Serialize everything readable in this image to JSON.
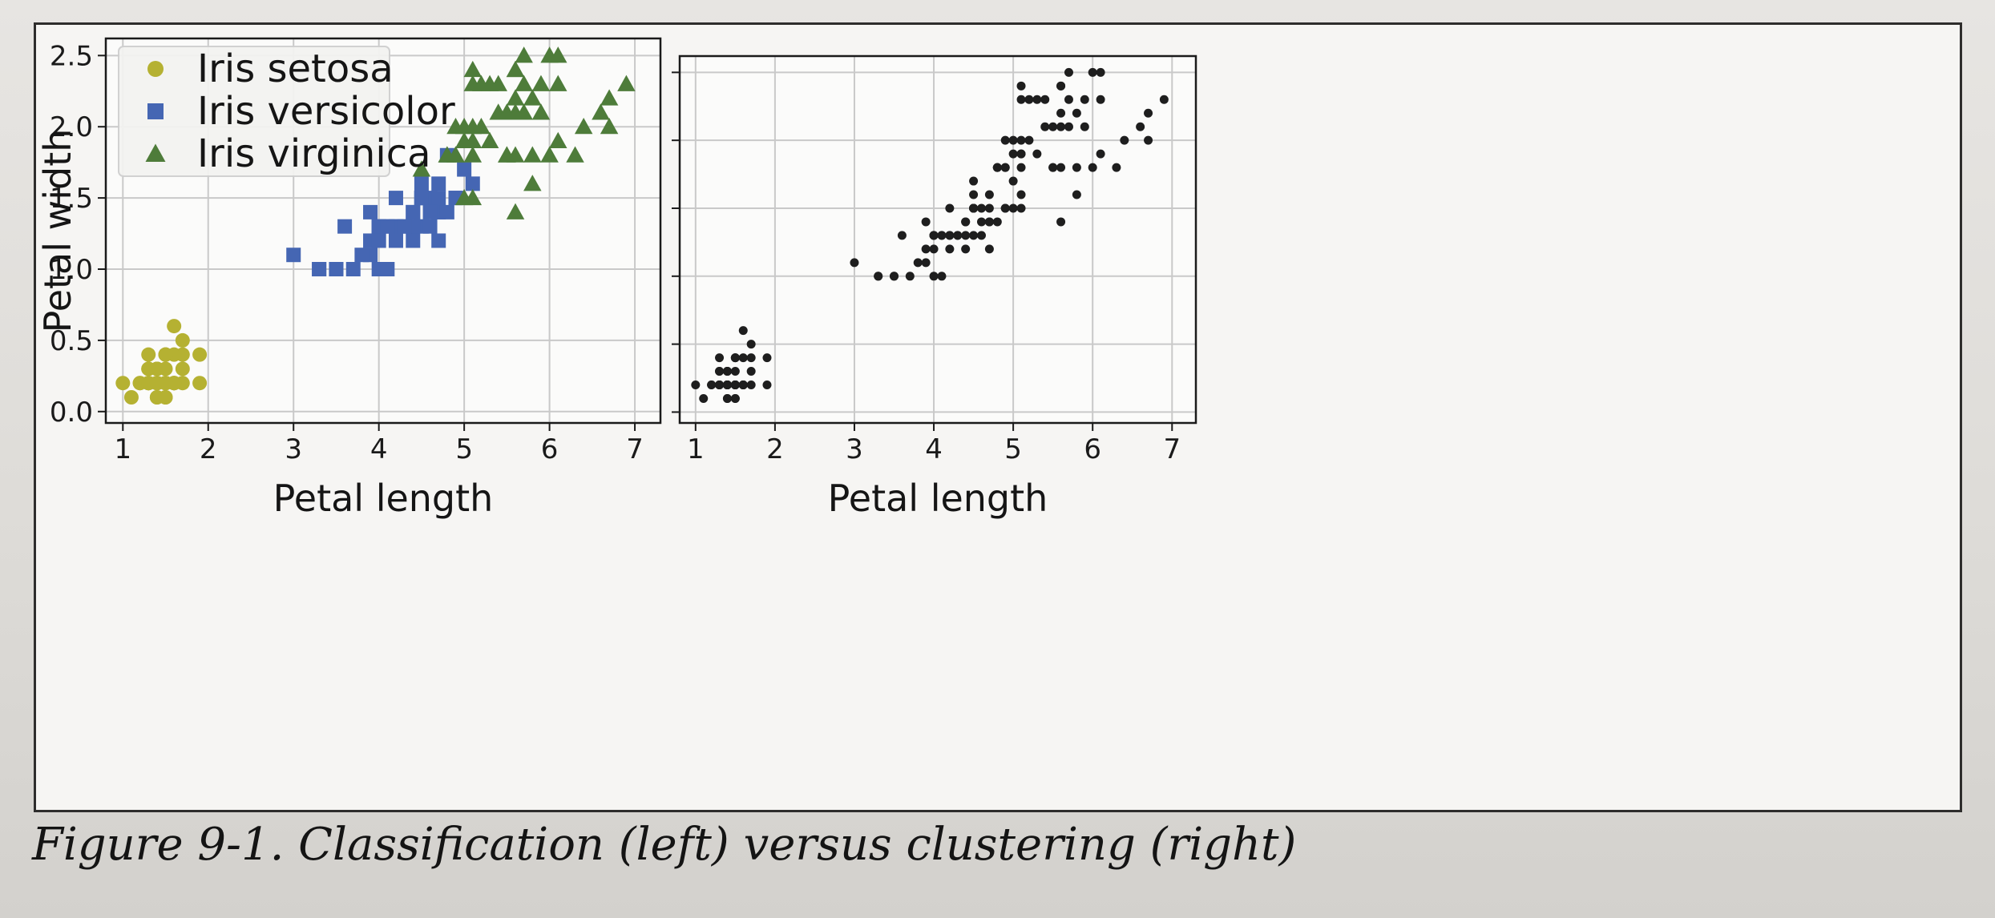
{
  "caption": "Figure 9-1. Classification (left) versus clustering (right)",
  "colors": {
    "setosa": "#b5b132",
    "versicolor": "#4566b3",
    "virginica": "#4e7c3a",
    "unlabeled": "#1e1e1e",
    "grid": "#c9c9c9",
    "frame": "#1a1a1a"
  },
  "chart_data": [
    {
      "type": "scatter",
      "position": "left",
      "title": "",
      "xlabel": "Petal length",
      "ylabel": "Petal width",
      "xlim": [
        0.8,
        7.3
      ],
      "ylim": [
        -0.08,
        2.62
      ],
      "xticks": [
        "1",
        "2",
        "3",
        "4",
        "5",
        "6",
        "7"
      ],
      "yticks": [
        "0.0",
        "0.5",
        "1.0",
        "1.5",
        "2.0",
        "2.5"
      ],
      "grid": true,
      "legend": {
        "placement": "top-left",
        "entries": [
          "Iris setosa",
          "Iris versicolor",
          "Iris virginica"
        ]
      },
      "series": [
        {
          "name": "Iris setosa",
          "marker": "circle",
          "color_key": "setosa",
          "points": [
            [
              1.4,
              0.2
            ],
            [
              1.4,
              0.2
            ],
            [
              1.3,
              0.2
            ],
            [
              1.5,
              0.2
            ],
            [
              1.4,
              0.2
            ],
            [
              1.7,
              0.4
            ],
            [
              1.4,
              0.3
            ],
            [
              1.5,
              0.2
            ],
            [
              1.4,
              0.2
            ],
            [
              1.5,
              0.1
            ],
            [
              1.5,
              0.2
            ],
            [
              1.6,
              0.2
            ],
            [
              1.4,
              0.1
            ],
            [
              1.1,
              0.1
            ],
            [
              1.2,
              0.2
            ],
            [
              1.5,
              0.4
            ],
            [
              1.3,
              0.4
            ],
            [
              1.4,
              0.3
            ],
            [
              1.7,
              0.3
            ],
            [
              1.5,
              0.3
            ],
            [
              1.7,
              0.2
            ],
            [
              1.5,
              0.4
            ],
            [
              1.0,
              0.2
            ],
            [
              1.7,
              0.5
            ],
            [
              1.9,
              0.2
            ],
            [
              1.6,
              0.2
            ],
            [
              1.6,
              0.4
            ],
            [
              1.5,
              0.2
            ],
            [
              1.4,
              0.2
            ],
            [
              1.6,
              0.2
            ],
            [
              1.6,
              0.2
            ],
            [
              1.5,
              0.4
            ],
            [
              1.5,
              0.1
            ],
            [
              1.4,
              0.2
            ],
            [
              1.5,
              0.2
            ],
            [
              1.2,
              0.2
            ],
            [
              1.3,
              0.2
            ],
            [
              1.4,
              0.1
            ],
            [
              1.3,
              0.2
            ],
            [
              1.5,
              0.2
            ],
            [
              1.3,
              0.3
            ],
            [
              1.3,
              0.3
            ],
            [
              1.3,
              0.2
            ],
            [
              1.6,
              0.6
            ],
            [
              1.9,
              0.4
            ],
            [
              1.4,
              0.3
            ],
            [
              1.6,
              0.2
            ],
            [
              1.4,
              0.2
            ],
            [
              1.5,
              0.2
            ],
            [
              1.4,
              0.2
            ]
          ]
        },
        {
          "name": "Iris versicolor",
          "marker": "square",
          "color_key": "versicolor",
          "points": [
            [
              4.7,
              1.4
            ],
            [
              4.5,
              1.5
            ],
            [
              4.9,
              1.5
            ],
            [
              4.0,
              1.3
            ],
            [
              4.6,
              1.5
            ],
            [
              4.5,
              1.3
            ],
            [
              4.7,
              1.6
            ],
            [
              3.3,
              1.0
            ],
            [
              4.6,
              1.3
            ],
            [
              3.9,
              1.4
            ],
            [
              3.5,
              1.0
            ],
            [
              4.2,
              1.5
            ],
            [
              4.0,
              1.0
            ],
            [
              4.7,
              1.4
            ],
            [
              3.6,
              1.3
            ],
            [
              4.4,
              1.4
            ],
            [
              4.5,
              1.5
            ],
            [
              4.1,
              1.0
            ],
            [
              4.5,
              1.5
            ],
            [
              3.9,
              1.1
            ],
            [
              4.8,
              1.8
            ],
            [
              4.0,
              1.3
            ],
            [
              4.9,
              1.5
            ],
            [
              4.7,
              1.2
            ],
            [
              4.3,
              1.3
            ],
            [
              4.4,
              1.4
            ],
            [
              4.8,
              1.4
            ],
            [
              5.0,
              1.7
            ],
            [
              4.5,
              1.5
            ],
            [
              3.5,
              1.0
            ],
            [
              3.8,
              1.1
            ],
            [
              3.7,
              1.0
            ],
            [
              3.9,
              1.2
            ],
            [
              5.1,
              1.6
            ],
            [
              4.5,
              1.5
            ],
            [
              4.5,
              1.6
            ],
            [
              4.7,
              1.5
            ],
            [
              4.4,
              1.3
            ],
            [
              4.1,
              1.3
            ],
            [
              4.0,
              1.3
            ],
            [
              4.4,
              1.2
            ],
            [
              4.6,
              1.4
            ],
            [
              4.0,
              1.2
            ],
            [
              3.3,
              1.0
            ],
            [
              4.2,
              1.3
            ],
            [
              4.2,
              1.2
            ],
            [
              4.2,
              1.3
            ],
            [
              4.3,
              1.3
            ],
            [
              3.0,
              1.1
            ],
            [
              4.1,
              1.3
            ]
          ]
        },
        {
          "name": "Iris virginica",
          "marker": "triangle",
          "color_key": "virginica",
          "points": [
            [
              6.0,
              2.5
            ],
            [
              5.1,
              1.9
            ],
            [
              5.9,
              2.1
            ],
            [
              5.6,
              1.8
            ],
            [
              5.8,
              2.2
            ],
            [
              6.6,
              2.1
            ],
            [
              4.5,
              1.7
            ],
            [
              6.3,
              1.8
            ],
            [
              5.8,
              1.8
            ],
            [
              6.1,
              2.5
            ],
            [
              5.1,
              2.0
            ],
            [
              5.3,
              1.9
            ],
            [
              5.5,
              2.1
            ],
            [
              5.0,
              2.0
            ],
            [
              5.1,
              2.4
            ],
            [
              5.3,
              2.3
            ],
            [
              5.5,
              1.8
            ],
            [
              6.7,
              2.2
            ],
            [
              6.9,
              2.3
            ],
            [
              5.0,
              1.5
            ],
            [
              5.7,
              2.3
            ],
            [
              4.9,
              2.0
            ],
            [
              6.7,
              2.0
            ],
            [
              4.9,
              1.8
            ],
            [
              5.7,
              2.1
            ],
            [
              6.0,
              1.8
            ],
            [
              4.8,
              1.8
            ],
            [
              4.9,
              1.8
            ],
            [
              5.6,
              2.1
            ],
            [
              5.8,
              1.6
            ],
            [
              6.1,
              1.9
            ],
            [
              6.4,
              2.0
            ],
            [
              5.6,
              2.2
            ],
            [
              5.1,
              1.5
            ],
            [
              5.6,
              1.4
            ],
            [
              6.1,
              2.3
            ],
            [
              5.6,
              2.4
            ],
            [
              5.5,
              1.8
            ],
            [
              4.8,
              1.8
            ],
            [
              5.4,
              2.1
            ],
            [
              5.6,
              2.4
            ],
            [
              5.1,
              2.3
            ],
            [
              5.1,
              1.9
            ],
            [
              5.9,
              2.3
            ],
            [
              5.7,
              2.5
            ],
            [
              5.2,
              2.3
            ],
            [
              5.0,
              1.9
            ],
            [
              5.2,
              2.0
            ],
            [
              5.4,
              2.3
            ],
            [
              5.1,
              1.8
            ]
          ]
        }
      ]
    },
    {
      "type": "scatter",
      "position": "right",
      "title": "",
      "xlabel": "Petal length",
      "ylabel": "",
      "xlim": [
        0.8,
        7.3
      ],
      "ylim": [
        -0.08,
        2.62
      ],
      "xticks": [
        "1",
        "2",
        "3",
        "4",
        "5",
        "6",
        "7"
      ],
      "yticks": [],
      "ytick_positions": [
        0.0,
        0.5,
        1.0,
        1.5,
        2.0,
        2.5
      ],
      "grid": true,
      "series": [
        {
          "marker": "dot",
          "color_key": "unlabeled",
          "points_from": "all-left-series"
        }
      ]
    }
  ]
}
